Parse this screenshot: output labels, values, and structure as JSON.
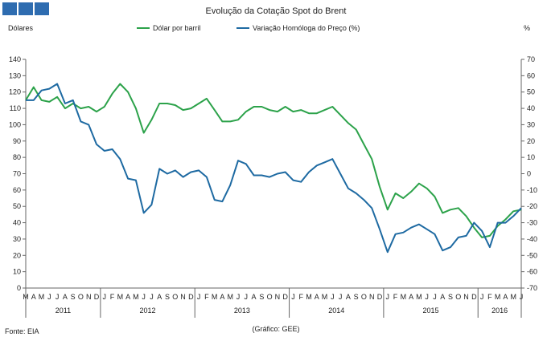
{
  "header": {
    "square_color": "#2e6cb0"
  },
  "chart_data": {
    "type": "line",
    "title": "Evolução da Cotação Spot do Brent",
    "ylabel_left": "Dólares",
    "ylabel_right": "%",
    "y_left_range": [
      0,
      140
    ],
    "y_left_ticks": [
      0,
      10,
      20,
      30,
      40,
      50,
      60,
      70,
      80,
      90,
      100,
      110,
      120,
      130,
      140
    ],
    "y_right_range": [
      -70,
      70
    ],
    "y_right_ticks": [
      -70,
      -60,
      -50,
      -40,
      -30,
      -20,
      -10,
      0,
      10,
      20,
      30,
      40,
      50,
      60,
      70
    ],
    "grid": false,
    "legend": "top-center",
    "x_months": [
      "M",
      "A",
      "M",
      "J",
      "J",
      "A",
      "S",
      "O",
      "N",
      "D",
      "J",
      "F",
      "M",
      "A",
      "M",
      "J",
      "J",
      "A",
      "S",
      "O",
      "N",
      "D",
      "J",
      "F",
      "M",
      "A",
      "M",
      "J",
      "J",
      "A",
      "S",
      "O",
      "N",
      "D",
      "J",
      "F",
      "M",
      "A",
      "M",
      "J",
      "J",
      "A",
      "S",
      "O",
      "N",
      "D",
      "J",
      "F",
      "M",
      "A",
      "M",
      "J",
      "J",
      "A",
      "S",
      "O",
      "N",
      "D",
      "J",
      "F",
      "M",
      "A",
      "M",
      "J"
    ],
    "x_years": [
      {
        "label": "2011",
        "start": 0,
        "end": 9
      },
      {
        "label": "2012",
        "start": 10,
        "end": 21
      },
      {
        "label": "2013",
        "start": 22,
        "end": 33
      },
      {
        "label": "2014",
        "start": 34,
        "end": 45
      },
      {
        "label": "2015",
        "start": 46,
        "end": 57
      },
      {
        "label": "2016",
        "start": 58,
        "end": 63
      }
    ],
    "series": [
      {
        "name": "Dólar por barril",
        "axis": "left",
        "color": "#2ca24a",
        "values": [
          115,
          123,
          115,
          114,
          117,
          110,
          113,
          110,
          111,
          108,
          111,
          119,
          125,
          120,
          110,
          95,
          103,
          113,
          113,
          112,
          109,
          110,
          113,
          116,
          109,
          102,
          102,
          103,
          108,
          111,
          111,
          109,
          108,
          111,
          108,
          109,
          107,
          107,
          109,
          111,
          106,
          101,
          97,
          88,
          79,
          62,
          48,
          58,
          55,
          59,
          64,
          61,
          56,
          46,
          48,
          49,
          44,
          37,
          31,
          32,
          38,
          42,
          47,
          48
        ]
      },
      {
        "name": "Variação Homóloga do Preço (%)",
        "axis": "right",
        "color": "#1e6aa2",
        "values": [
          45,
          45,
          51,
          52,
          55,
          43,
          45,
          32,
          30,
          18,
          14,
          15,
          9,
          -3,
          -4,
          -24,
          -19,
          3,
          0,
          2,
          -2,
          1,
          2,
          -2,
          -16,
          -17,
          -7,
          8,
          6,
          -1,
          -1,
          -2,
          0,
          1,
          -4,
          -5,
          1,
          5,
          7,
          9,
          0,
          -9,
          -12,
          -16,
          -21,
          -34,
          -48,
          -37,
          -36,
          -33,
          -31,
          -34,
          -37,
          -47,
          -45,
          -39,
          -38,
          -30,
          -35,
          -45,
          -30,
          -30,
          -26,
          -21
        ]
      }
    ],
    "footer_source": "Fonte: EIA",
    "footer_credit": "(Gráfico: GEE)"
  }
}
